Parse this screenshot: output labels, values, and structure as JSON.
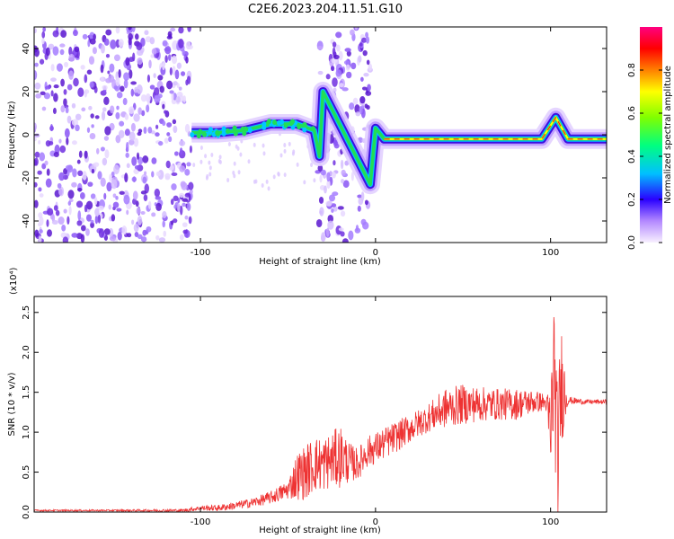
{
  "title": "C2E6.2023.204.11.51.G10",
  "colors": {
    "snr_line": "#ee3333",
    "spectrogram_purple": "#7b2fe0",
    "track_green": "#22dd55",
    "track_red": "#ee2222"
  },
  "chart_data": [
    {
      "type": "heatmap",
      "title": "",
      "xlabel": "Height of straight line (km)",
      "ylabel": "Frequency (Hz)",
      "xlim": [
        -195,
        132
      ],
      "ylim": [
        -50,
        50
      ],
      "x_ticks": [
        -100,
        0,
        100
      ],
      "x_tick_labels": [
        "-100",
        "0",
        "100"
      ],
      "y_ticks": [
        -40,
        -20,
        0,
        20,
        40
      ],
      "y_tick_labels": [
        "-40",
        "-20",
        "0",
        "20",
        "40"
      ],
      "colorbar": {
        "label": "Normalized spectral amplitude",
        "range": [
          0,
          1
        ],
        "ticks": [
          0.0,
          0.2,
          0.4,
          0.6,
          0.8
        ],
        "tick_labels": [
          "0.0",
          "0.2",
          "0.4",
          "0.6",
          "0.8"
        ]
      },
      "noise_regions_km": [
        [
          -195,
          -105
        ],
        [
          -33,
          -3
        ]
      ],
      "signal_track": [
        {
          "x": -105,
          "y": 1
        },
        {
          "x": -90,
          "y": 1
        },
        {
          "x": -75,
          "y": 2
        },
        {
          "x": -60,
          "y": 5
        },
        {
          "x": -45,
          "y": 5
        },
        {
          "x": -35,
          "y": 2
        },
        {
          "x": -32,
          "y": -10
        },
        {
          "x": -30,
          "y": 20
        },
        {
          "x": -3,
          "y": -23
        },
        {
          "x": 0,
          "y": 3
        },
        {
          "x": 5,
          "y": -2
        },
        {
          "x": 40,
          "y": -2
        },
        {
          "x": 80,
          "y": -2
        },
        {
          "x": 95,
          "y": -2
        },
        {
          "x": 103,
          "y": 8
        },
        {
          "x": 110,
          "y": -2
        },
        {
          "x": 132,
          "y": -2
        }
      ]
    },
    {
      "type": "line",
      "title": "",
      "xlabel": "Height of straight line (km)",
      "ylabel": "SNR (10 * v/v)",
      "y_multiplier": "(x10⁴)",
      "xlim": [
        -195,
        132
      ],
      "ylim": [
        0,
        2.7
      ],
      "x_ticks": [
        -100,
        0,
        100
      ],
      "x_tick_labels": [
        "-100",
        "0",
        "100"
      ],
      "y_ticks": [
        0,
        0.5,
        1.0,
        1.5,
        2.0,
        2.5
      ],
      "y_tick_labels": [
        "0.0",
        "0.5",
        "1.0",
        "1.5",
        "2.0",
        "2.5"
      ],
      "series": [
        {
          "x": [
            -195,
            -150,
            -110,
            -100,
            -90,
            -80,
            -70,
            -60,
            -50,
            -45,
            -40,
            -35,
            -30,
            -25,
            -20,
            -15,
            -10,
            -5,
            0,
            10,
            20,
            30,
            40,
            50,
            60,
            70,
            80,
            90,
            95,
            98,
            100,
            102,
            104,
            106,
            110,
            120,
            132
          ],
          "y": [
            0.02,
            0.02,
            0.02,
            0.05,
            0.05,
            0.08,
            0.12,
            0.18,
            0.28,
            0.45,
            0.5,
            0.6,
            0.6,
            0.65,
            0.7,
            0.62,
            0.6,
            0.75,
            0.8,
            0.92,
            1.05,
            1.18,
            1.3,
            1.35,
            1.35,
            1.35,
            1.35,
            1.38,
            1.38,
            1.35,
            0.9,
            1.9,
            0.6,
            1.6,
            1.4,
            1.38,
            1.38
          ],
          "noise_amplitude": [
            0.01,
            0.01,
            0.02,
            0.03,
            0.04,
            0.05,
            0.06,
            0.08,
            0.12,
            0.3,
            0.35,
            0.35,
            0.35,
            0.35,
            0.4,
            0.25,
            0.2,
            0.2,
            0.2,
            0.2,
            0.18,
            0.18,
            0.25,
            0.25,
            0.22,
            0.2,
            0.2,
            0.15,
            0.12,
            0.1,
            0.8,
            0.9,
            0.9,
            0.8,
            0.05,
            0.03,
            0.03
          ]
        }
      ]
    }
  ]
}
